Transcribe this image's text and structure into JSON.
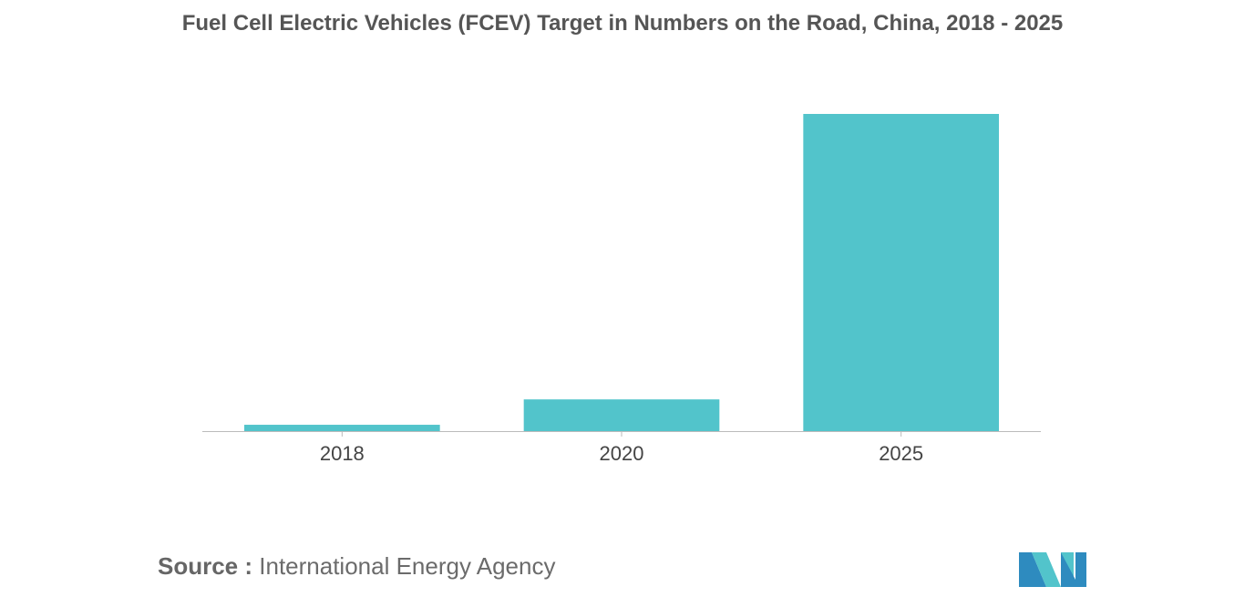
{
  "chart_data": {
    "type": "bar",
    "title": "Fuel Cell Electric Vehicles (FCEV) Target in Numbers on the Road, China, 2018 - 2025",
    "categories": [
      "2018",
      "2020",
      "2025"
    ],
    "values": [
      2000,
      10000,
      100000
    ],
    "xlabel": "",
    "ylabel": "",
    "ylim": [
      0,
      100000
    ],
    "grid": false,
    "legend": "none",
    "bar_color": "#52c4cb"
  },
  "source": {
    "label": "Source :",
    "text": "International Energy Agency"
  },
  "logo": {
    "icon": "mordor-intelligence-logo-icon",
    "colors": [
      "#2e8bbf",
      "#52c4cb"
    ]
  }
}
